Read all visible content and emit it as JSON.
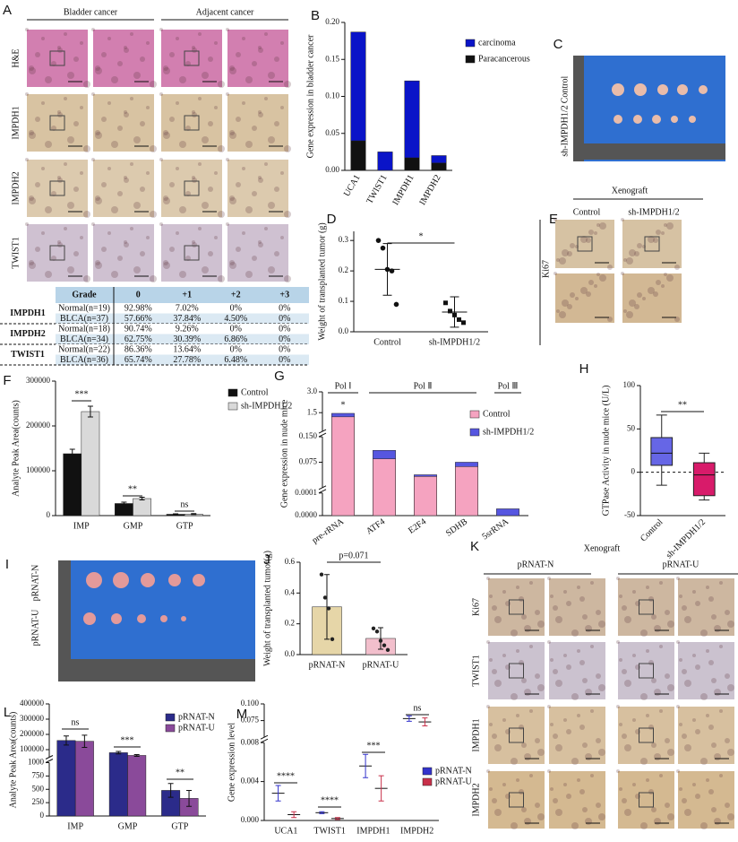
{
  "panel_labels": [
    "A",
    "B",
    "C",
    "D",
    "E",
    "F",
    "G",
    "H",
    "I",
    "J",
    "K",
    "L",
    "M"
  ],
  "panel_a": {
    "columns": [
      "Bladder cancer",
      "Adjacent cancer"
    ],
    "rows": [
      "H&E",
      "IMPDH1",
      "IMPDH2",
      "TWIST1"
    ]
  },
  "table": {
    "header": [
      "Grade",
      "0",
      "+1",
      "+2",
      "+3"
    ],
    "groups": [
      {
        "name": "IMPDH1",
        "rows": [
          [
            "Normal(n=19)",
            "92.98%",
            "7.02%",
            "0%",
            "0%"
          ],
          [
            "BLCA(n=37)",
            "57.66%",
            "37.84%",
            "4.50%",
            "0%"
          ]
        ]
      },
      {
        "name": "IMPDH2",
        "rows": [
          [
            "Normal(n=18)",
            "90.74%",
            "9.26%",
            "0%",
            "0%"
          ],
          [
            "BLCA(n=34)",
            "62.75%",
            "30.39%",
            "6.86%",
            "0%"
          ]
        ]
      },
      {
        "name": "TWIST1",
        "rows": [
          [
            "Normal(n=22)",
            "86.36%",
            "13.64%",
            "0%",
            "0%"
          ],
          [
            "BLCA(n=36)",
            "65.74%",
            "27.78%",
            "6.48%",
            "0%"
          ]
        ]
      }
    ]
  },
  "panel_c": {
    "rows": [
      "Control",
      "sh-IMPDH1/2"
    ]
  },
  "panel_e": {
    "title": "Xenograft",
    "columns": [
      "Control",
      "sh-IMPDH1/2"
    ],
    "rows": [
      "Ki67"
    ]
  },
  "panel_i": {
    "rows": [
      "pRNAT-N",
      "pRNAT-U"
    ]
  },
  "panel_k": {
    "title": "Xenograft",
    "columns": [
      "pRNAT-N",
      "pRNAT-U"
    ],
    "rows": [
      "Ki67",
      "TWIST1",
      "IMPDH1",
      "IMPDH2"
    ]
  },
  "chart_data": [
    {
      "type": "bar",
      "mode": "overlay",
      "y_label": "Gene expression in bladder cancer",
      "categories": [
        "UCA1",
        "TWIST1",
        "IMPDH1",
        "IMPDH2"
      ],
      "series": [
        {
          "name": "carcinoma",
          "color": "#0a14c8",
          "values": [
            0.187,
            0.025,
            0.121,
            0.02
          ]
        },
        {
          "name": "Paracancerous",
          "color": "#111111",
          "values": [
            0.04,
            0,
            0.017,
            0.01
          ]
        }
      ],
      "ylim": [
        0,
        0.2
      ],
      "yticks": [
        {
          "value": 0,
          "label": "0.00"
        },
        0.05,
        {
          "value": 0.1,
          "label": "0.10"
        },
        0.15,
        {
          "value": 0.2,
          "label": "0.20"
        }
      ]
    },
    {
      "type": "strip",
      "y_label": "Weight of transplanted tumor (g)",
      "categories": [
        "Control",
        "sh-IMPDH1/2"
      ],
      "markers": [
        "circle",
        "square"
      ],
      "points": [
        [
          0.3,
          0.275,
          0.205,
          0.2,
          0.09
        ],
        [
          0.095,
          0.068,
          0.055,
          0.04,
          0.03
        ]
      ],
      "means": [
        0.205,
        0.065
      ],
      "sds": [
        0.085,
        0.05
      ],
      "ylim": [
        0,
        0.33
      ],
      "yticks": [
        {
          "value": 0,
          "label": "0.0"
        },
        0.1,
        0.2,
        0.3
      ],
      "annotations": [
        "*"
      ]
    },
    {
      "type": "bar",
      "mode": "grouped",
      "y_label": "Analyte Peak Area(counts)",
      "categories": [
        "IMP",
        "GMP",
        "GTP"
      ],
      "series": [
        {
          "name": "Control",
          "color": "#111111",
          "values": [
            138000,
            27000,
            3000
          ],
          "errors": [
            10000,
            3000,
            1000
          ]
        },
        {
          "name": "sh-IMPDH1/2",
          "color": "#d9d9d9",
          "values": [
            232000,
            38000,
            3500
          ],
          "errors": [
            12000,
            3000,
            1000
          ]
        }
      ],
      "ylim": [
        0,
        300000
      ],
      "yticks": [
        0,
        100000,
        200000,
        300000
      ],
      "annotations": [
        "***",
        "**",
        "ns"
      ]
    },
    {
      "type": "bar",
      "mode": "overlay",
      "y_label": "Gene expression in nude mice",
      "categories": [
        "pre-rRNA",
        "ATF4",
        "E2F4",
        "SDHB",
        "5srRNA"
      ],
      "series": [
        {
          "name": "Control",
          "color": "#f5a3c0",
          "values": [
            1.2,
            0.085,
            0.033,
            0.062,
            0
          ]
        },
        {
          "name": "sh-IMPDH1/2",
          "color": "#5656e0",
          "values": [
            1.45,
            0.11,
            0.038,
            0.075,
            3e-05
          ]
        }
      ],
      "segments": [
        {
          "lim": [
            0,
            0.0001
          ],
          "ticks": [
            {
              "value": 0,
              "label": "0.0000"
            },
            {
              "value": 0.0001,
              "label": "0.0001"
            }
          ]
        },
        {
          "lim": [
            0.0001,
            0.15
          ],
          "ticks": [
            0.075,
            {
              "value": 0.15,
              "label": "0.150"
            }
          ]
        },
        {
          "lim": [
            0.15,
            3
          ],
          "ticks": [
            1.5,
            {
              "value": 3,
              "label": "3.0"
            }
          ]
        }
      ],
      "annotations": [
        "*",
        "Pol Ⅰ",
        "Pol Ⅱ",
        "Pol Ⅲ"
      ]
    },
    {
      "type": "box",
      "y_label": "GTPase Activity in nude mice (U/L)",
      "categories": [
        "Control",
        "sh-IMPDH1/2"
      ],
      "colors": [
        "#6666e6",
        "#d81b6a"
      ],
      "boxes": [
        {
          "min": -15,
          "q1": 8,
          "median": 22,
          "q3": 40,
          "max": 66
        },
        {
          "min": -32,
          "q1": -27,
          "median": -3,
          "q3": 11,
          "max": 22
        }
      ],
      "ylim": [
        -50,
        100
      ],
      "yticks": [
        -50,
        0,
        50,
        100
      ],
      "reference_line": 0,
      "annotations": [
        "**"
      ]
    },
    {
      "type": "bar",
      "mode": "overlay",
      "y_label": "Weight of transplanted tumor(g)",
      "categories": [
        "pRNAT-N",
        "pRNAT-U"
      ],
      "series": [
        {
          "colors": [
            "#e6d6a8",
            "#f2bfcc"
          ],
          "values": [
            0.31,
            0.105
          ],
          "errors": [
            0.21,
            0.07
          ],
          "points": [
            [
              0.52,
              0.37,
              0.3,
              0.1
            ],
            [
              0.17,
              0.15,
              0.09,
              0.06,
              0.03
            ]
          ]
        }
      ],
      "ylim": [
        0,
        0.6
      ],
      "yticks": [
        {
          "value": 0,
          "label": "0.0"
        },
        0.2,
        0.4,
        0.6
      ],
      "annotations": [
        "p=0.071"
      ]
    },
    {
      "type": "bar",
      "mode": "grouped",
      "y_label": "Analyte Peak Area(counts)",
      "categories": [
        "IMP",
        "GMP",
        "GTP"
      ],
      "series": [
        {
          "name": "pRNAT-N",
          "color": "#2b2b8a",
          "values": [
            160000,
            80000,
            480
          ],
          "errors": [
            30000,
            8000,
            130
          ]
        },
        {
          "name": "pRNAT-U",
          "color": "#8a4a9a",
          "values": [
            155000,
            62000,
            330
          ],
          "errors": [
            40000,
            6000,
            150
          ]
        }
      ],
      "segments": [
        {
          "lim": [
            0,
            1000
          ],
          "ticks": [
            0,
            250,
            500,
            750,
            1000
          ]
        },
        {
          "lim": [
            50000,
            400000
          ],
          "ticks": [
            100000,
            200000,
            300000,
            400000
          ]
        }
      ],
      "annotations": [
        "ns",
        "***",
        "**"
      ]
    },
    {
      "type": "dot",
      "y_label": "Gene expression level",
      "categories": [
        "UCA1",
        "TWIST1",
        "IMPDH1",
        "IMPDH2"
      ],
      "series": [
        {
          "name": "pRNAT-N",
          "color": "#3333cc",
          "values": [
            0.0028,
            0.0008,
            0.0056,
            0.078
          ],
          "errors": [
            0.0008,
            0.0001,
            0.0012,
            0.004
          ]
        },
        {
          "name": "pRNAT-U",
          "color": "#c8304a",
          "values": [
            0.0006,
            0.0002,
            0.0033,
            0.073
          ],
          "errors": [
            0.0003,
            0.0001,
            0.0013,
            0.006
          ]
        }
      ],
      "segments": [
        {
          "lim": [
            0,
            0.008
          ],
          "ticks": [
            {
              "value": 0,
              "label": "0.000"
            },
            0.004,
            0.008
          ]
        },
        {
          "lim": [
            0.05,
            0.1
          ],
          "ticks": [
            0.075,
            {
              "value": 0.1,
              "label": "0.100"
            }
          ]
        }
      ],
      "annotations": [
        "****",
        "****",
        "***",
        "ns"
      ]
    }
  ]
}
